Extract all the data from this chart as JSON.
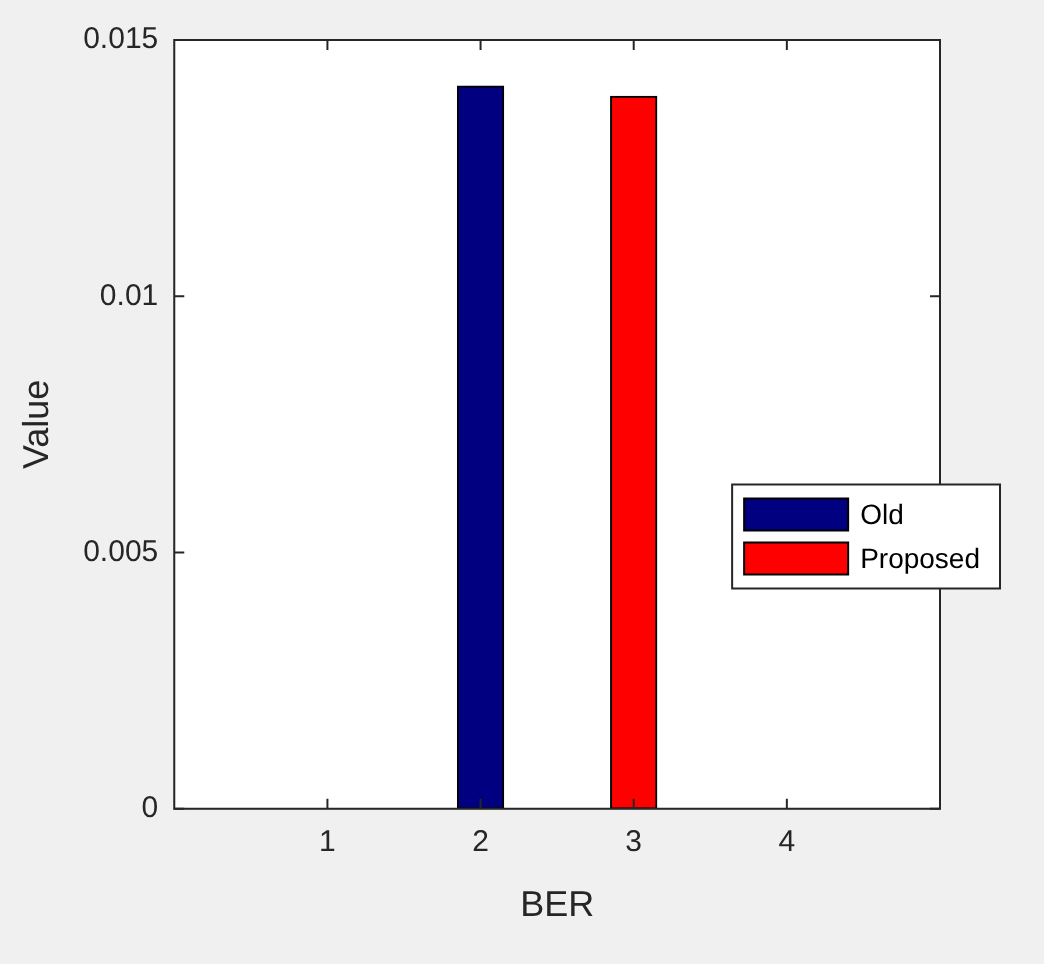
{
  "chart_data": {
    "type": "bar",
    "stacked": true,
    "xlabel": "BER",
    "ylabel": "Value",
    "x": [
      1,
      2,
      3,
      4
    ],
    "xlim": [
      0,
      5
    ],
    "xticks": [
      1,
      2,
      3,
      4
    ],
    "ylim": [
      0,
      0.015
    ],
    "yticks": [
      0,
      0.005,
      0.01,
      0.015
    ],
    "grid": false,
    "legend": "right",
    "series": [
      {
        "name": "Old",
        "color": "#000080",
        "values": [
          0,
          0.0141,
          0,
          0
        ]
      },
      {
        "name": "Proposed",
        "color": "#ff0000",
        "values": [
          0,
          0,
          0.0139,
          0
        ]
      }
    ]
  }
}
